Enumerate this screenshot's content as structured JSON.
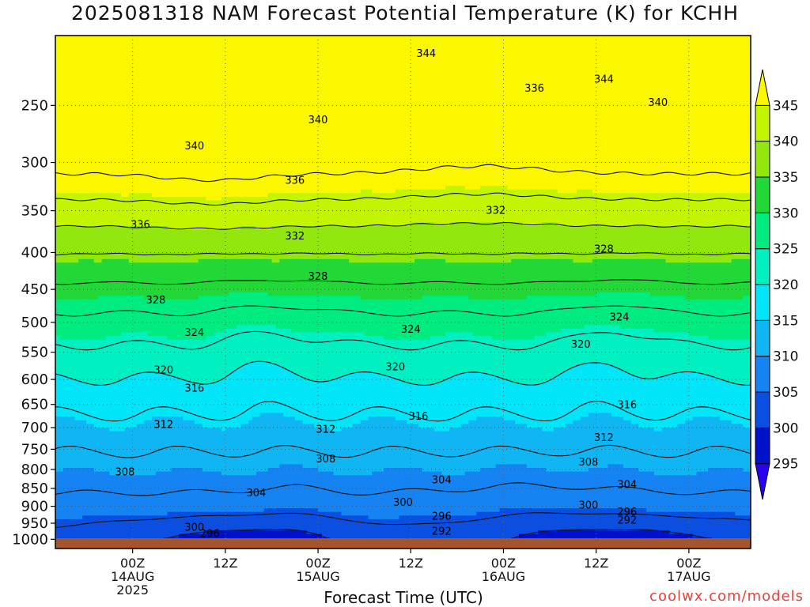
{
  "title": "2025081318 NAM Forecast Potential Temperature (K) for KCHH",
  "xaxis_title": "Forecast Time (UTC)",
  "credit": "coolwx.com/models",
  "chart_data": {
    "type": "contour",
    "title": "2025081318 NAM Forecast Potential Temperature (K) for KCHH",
    "xlabel": "Forecast Time (UTC)",
    "ylabel": "",
    "y_log_pressure": true,
    "ylim": [
      1030,
      200
    ],
    "xlim_hours": [
      -10,
      80
    ],
    "yticks": [
      250,
      300,
      350,
      400,
      450,
      500,
      550,
      600,
      650,
      700,
      750,
      800,
      850,
      900,
      950,
      1000
    ],
    "xticks": [
      {
        "h": 0,
        "lines": [
          "00Z",
          "14AUG",
          "2025"
        ]
      },
      {
        "h": 12,
        "lines": [
          "12Z"
        ]
      },
      {
        "h": 24,
        "lines": [
          "00Z",
          "15AUG"
        ]
      },
      {
        "h": 36,
        "lines": [
          "12Z"
        ]
      },
      {
        "h": 48,
        "lines": [
          "00Z",
          "16AUG"
        ]
      },
      {
        "h": 60,
        "lines": [
          "12Z"
        ]
      },
      {
        "h": 72,
        "lines": [
          "00Z",
          "17AUG"
        ]
      }
    ],
    "grid": true,
    "colorbar": {
      "levels": [
        295,
        300,
        305,
        310,
        315,
        320,
        325,
        330,
        335,
        340,
        345
      ],
      "colors": [
        "#2a00ef",
        "#0011cc",
        "#0b4fe2",
        "#1583f2",
        "#10b6f4",
        "#00e6f8",
        "#00f0c2",
        "#00ec80",
        "#22d836",
        "#92e80e",
        "#c4f500",
        "#fbf700"
      ],
      "placement": "right"
    },
    "contour_interval": 4,
    "contour_labels": [
      {
        "v": 344,
        "h": 38,
        "p": 212
      },
      {
        "v": 344,
        "h": 61,
        "p": 230
      },
      {
        "v": 340,
        "h": 24,
        "p": 262
      },
      {
        "v": 340,
        "h": 68,
        "p": 248
      },
      {
        "v": 340,
        "h": 8,
        "p": 285
      },
      {
        "v": 336,
        "h": 52,
        "p": 237
      },
      {
        "v": 336,
        "h": 21,
        "p": 318
      },
      {
        "v": 336,
        "h": 1,
        "p": 366
      },
      {
        "v": 332,
        "h": 21,
        "p": 380
      },
      {
        "v": 332,
        "h": 47,
        "p": 350
      },
      {
        "v": 328,
        "h": 24,
        "p": 432
      },
      {
        "v": 328,
        "h": 3,
        "p": 466
      },
      {
        "v": 328,
        "h": 61,
        "p": 396
      },
      {
        "v": 324,
        "h": 8,
        "p": 517
      },
      {
        "v": 324,
        "h": 36,
        "p": 512
      },
      {
        "v": 324,
        "h": 63,
        "p": 492
      },
      {
        "v": 320,
        "h": 4,
        "p": 583
      },
      {
        "v": 320,
        "h": 34,
        "p": 577
      },
      {
        "v": 320,
        "h": 58,
        "p": 537
      },
      {
        "v": 316,
        "h": 8,
        "p": 618
      },
      {
        "v": 316,
        "h": 37,
        "p": 676
      },
      {
        "v": 316,
        "h": 64,
        "p": 651
      },
      {
        "v": 312,
        "h": 4,
        "p": 694
      },
      {
        "v": 312,
        "h": 25,
        "p": 704
      },
      {
        "v": 312,
        "h": 61,
        "p": 723
      },
      {
        "v": 308,
        "h": -1,
        "p": 807
      },
      {
        "v": 308,
        "h": 25,
        "p": 774
      },
      {
        "v": 308,
        "h": 59,
        "p": 782
      },
      {
        "v": 304,
        "h": 16,
        "p": 863
      },
      {
        "v": 304,
        "h": 40,
        "p": 828
      },
      {
        "v": 304,
        "h": 64,
        "p": 841
      },
      {
        "v": 300,
        "h": 8,
        "p": 963
      },
      {
        "v": 300,
        "h": 35,
        "p": 890
      },
      {
        "v": 300,
        "h": 59,
        "p": 898
      },
      {
        "v": 296,
        "h": 10,
        "p": 983
      },
      {
        "v": 296,
        "h": 40,
        "p": 930
      },
      {
        "v": 296,
        "h": 64,
        "p": 917
      },
      {
        "v": 292,
        "h": 40,
        "p": 975
      },
      {
        "v": 292,
        "h": 64,
        "p": 942
      }
    ]
  }
}
